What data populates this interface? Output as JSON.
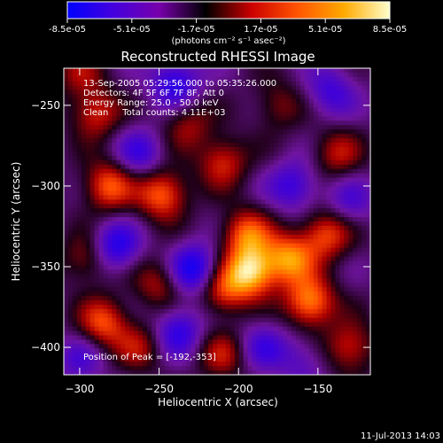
{
  "chart_data": {
    "type": "heatmap",
    "title": "Reconstructed RHESSI Image",
    "xlabel": "Heliocentric X (arcsec)",
    "ylabel": "Heliocentric Y (arcsec)",
    "xlim": [
      -310,
      -117
    ],
    "ylim": [
      -417,
      -227
    ],
    "x_ticks": [
      -300,
      -250,
      -200,
      -150
    ],
    "y_ticks": [
      -250,
      -300,
      -350,
      -400
    ],
    "colorbar": {
      "ticks": [
        "-8.5e-05",
        "-5.1e-05",
        "-1.7e-05",
        "1.7e-05",
        "5.1e-05",
        "8.5e-05"
      ],
      "range": [
        -8.5e-05,
        8.5e-05
      ],
      "unit_label": "(photons cm⁻² s⁻¹ asec⁻²)",
      "colors": [
        "#0000ff",
        "#4400dd",
        "#7700aa",
        "#000000",
        "#cc0000",
        "#ff5500",
        "#ffaa00",
        "#ffffcc"
      ]
    },
    "annotations": [
      "13-Sep-2005 05:29:56.000 to 05:35:26.000",
      "Detectors: 4F 5F 6F 7F 8F, Att 0",
      "Energy Range: 25.0 - 50.0 keV",
      "Clean     Total counts: 4.11E+03"
    ],
    "peak_label": "Position of Peak = [-192,-353]",
    "peak": [
      -192,
      -353
    ],
    "sources": [
      {
        "x": -290,
        "y": -255,
        "v": 0.55
      },
      {
        "x": -282,
        "y": -300,
        "v": 0.7
      },
      {
        "x": -295,
        "y": -345,
        "v": 0.45
      },
      {
        "x": -285,
        "y": -385,
        "v": 0.65
      },
      {
        "x": -248,
        "y": -305,
        "v": 0.75
      },
      {
        "x": -232,
        "y": -262,
        "v": 0.4
      },
      {
        "x": -210,
        "y": -285,
        "v": 0.55
      },
      {
        "x": -195,
        "y": -330,
        "v": 0.7
      },
      {
        "x": -192,
        "y": -353,
        "v": 1.0
      },
      {
        "x": -210,
        "y": -365,
        "v": 0.6
      },
      {
        "x": -168,
        "y": -345,
        "v": 0.8
      },
      {
        "x": -155,
        "y": -372,
        "v": 0.85
      },
      {
        "x": -145,
        "y": -330,
        "v": 0.65
      },
      {
        "x": -138,
        "y": -280,
        "v": 0.45
      },
      {
        "x": -175,
        "y": -250,
        "v": 0.35
      },
      {
        "x": -250,
        "y": -360,
        "v": 0.45
      },
      {
        "x": -262,
        "y": -400,
        "v": 0.4
      },
      {
        "x": -210,
        "y": -405,
        "v": 0.45
      },
      {
        "x": -130,
        "y": -400,
        "v": 0.55
      },
      {
        "x": -300,
        "y": -230,
        "v": 0.35
      },
      {
        "x": -240,
        "y": -236,
        "v": -0.6
      },
      {
        "x": -262,
        "y": -280,
        "v": -0.45
      },
      {
        "x": -228,
        "y": -352,
        "v": -0.75
      },
      {
        "x": -278,
        "y": -338,
        "v": -0.65
      },
      {
        "x": -238,
        "y": -390,
        "v": -0.55
      },
      {
        "x": -165,
        "y": -300,
        "v": -0.5
      },
      {
        "x": -142,
        "y": -242,
        "v": -0.45
      },
      {
        "x": -185,
        "y": -400,
        "v": -0.4
      },
      {
        "x": -300,
        "y": -408,
        "v": -0.35
      },
      {
        "x": -160,
        "y": -408,
        "v": -0.3
      },
      {
        "x": -130,
        "y": -310,
        "v": -0.35
      }
    ]
  },
  "footer": {
    "timestamp": "11-Jul-2013 14:03"
  }
}
